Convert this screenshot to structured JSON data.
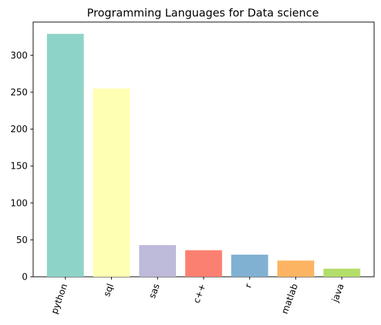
{
  "chart_data": {
    "type": "bar",
    "title": "Programming Languages for Data science",
    "xlabel": "",
    "ylabel": "",
    "categories": [
      "python",
      "sql",
      "sas",
      "c++",
      "r",
      "matlab",
      "java"
    ],
    "values": [
      329,
      255,
      43,
      36,
      30,
      22,
      11
    ],
    "colors": [
      "#8dd3c7",
      "#ffffb3",
      "#bebada",
      "#fb8072",
      "#80b1d3",
      "#fdb462",
      "#b3de69"
    ],
    "ylim": [
      0,
      345
    ],
    "yticks": [
      "0",
      "50",
      "100",
      "150",
      "200",
      "250",
      "300"
    ],
    "grid": false,
    "legend": "none"
  }
}
